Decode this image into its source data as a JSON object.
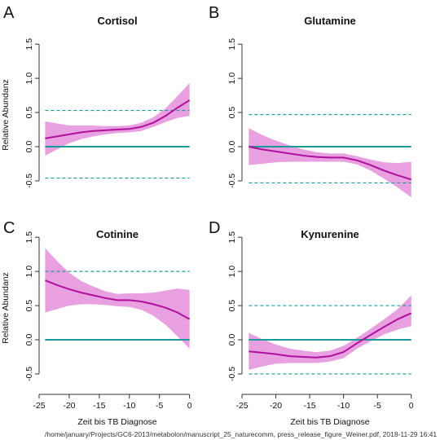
{
  "footer": "/home/january/Projects/GC6-2013/metabolon/manuscript_25_naturecomm, press_release_figure_Weiner.pdf, 2018-11-29 16:41",
  "shared": {
    "ylabel": "Relative Abundanz",
    "xlabel": "Zeit bis TB Diagnose",
    "x_ticks": [
      -25,
      -20,
      -15,
      -10,
      -5,
      0
    ],
    "y_ticks": [
      -0.5,
      0.0,
      0.5,
      1.0,
      1.5
    ],
    "y_tick_labels": [
      "-0.5",
      "0.0",
      "0.5",
      "1.0",
      "1.5"
    ],
    "x_tick_labels": [
      "-25",
      "-20",
      "-15",
      "-10",
      "-5",
      "0"
    ]
  },
  "colors": {
    "line": "#b0109c",
    "band": "#e48fdc",
    "zero_line": "#1a9a9a",
    "threshold_line": "#1a9a9a"
  },
  "chart_data": [
    {
      "type": "line",
      "letter": "A",
      "title": "Cortisol",
      "xlim": [
        -25,
        1
      ],
      "ylim": [
        -0.62,
        1.55
      ],
      "thresholds": [
        0.53,
        -0.46
      ],
      "x": [
        -24,
        -22,
        -20,
        -18,
        -16,
        -14,
        -12,
        -10,
        -8,
        -6,
        -4,
        -2,
        0
      ],
      "mean": [
        0.12,
        0.15,
        0.18,
        0.21,
        0.23,
        0.24,
        0.25,
        0.26,
        0.29,
        0.35,
        0.45,
        0.57,
        0.68
      ],
      "lower": [
        -0.13,
        -0.04,
        0.05,
        0.11,
        0.15,
        0.18,
        0.2,
        0.21,
        0.23,
        0.29,
        0.36,
        0.42,
        0.45
      ],
      "upper": [
        0.37,
        0.34,
        0.31,
        0.31,
        0.31,
        0.3,
        0.3,
        0.31,
        0.35,
        0.43,
        0.56,
        0.74,
        0.93
      ]
    },
    {
      "type": "line",
      "letter": "B",
      "title": "Glutamine",
      "xlim": [
        -25,
        1
      ],
      "ylim": [
        -0.62,
        1.55
      ],
      "thresholds": [
        0.47,
        -0.53
      ],
      "x": [
        -24,
        -22,
        -20,
        -18,
        -16,
        -14,
        -12,
        -10,
        -8,
        -6,
        -4,
        -2,
        0
      ],
      "mean": [
        0.0,
        -0.04,
        -0.07,
        -0.1,
        -0.13,
        -0.15,
        -0.16,
        -0.16,
        -0.2,
        -0.27,
        -0.35,
        -0.42,
        -0.48
      ],
      "lower": [
        -0.27,
        -0.25,
        -0.23,
        -0.22,
        -0.22,
        -0.22,
        -0.22,
        -0.22,
        -0.26,
        -0.35,
        -0.47,
        -0.6,
        -0.74
      ],
      "upper": [
        0.27,
        0.17,
        0.09,
        0.02,
        -0.04,
        -0.08,
        -0.1,
        -0.1,
        -0.14,
        -0.19,
        -0.23,
        -0.24,
        -0.22
      ]
    },
    {
      "type": "line",
      "letter": "C",
      "title": "Cotinine",
      "xlim": [
        -25,
        1
      ],
      "ylim": [
        -0.62,
        1.55
      ],
      "thresholds": [
        1.0,
        0.0
      ],
      "x": [
        -24,
        -22,
        -20,
        -18,
        -16,
        -14,
        -12,
        -10,
        -8,
        -6,
        -4,
        -2,
        0
      ],
      "mean": [
        0.87,
        0.8,
        0.74,
        0.69,
        0.65,
        0.61,
        0.58,
        0.58,
        0.56,
        0.52,
        0.47,
        0.4,
        0.3
      ],
      "lower": [
        0.4,
        0.45,
        0.5,
        0.52,
        0.52,
        0.51,
        0.49,
        0.48,
        0.44,
        0.35,
        0.22,
        0.05,
        -0.13
      ],
      "upper": [
        1.34,
        1.15,
        0.98,
        0.86,
        0.78,
        0.71,
        0.67,
        0.68,
        0.68,
        0.69,
        0.72,
        0.75,
        0.73
      ]
    },
    {
      "type": "line",
      "letter": "D",
      "title": "Kynurenine",
      "xlim": [
        -25,
        1
      ],
      "ylim": [
        -0.62,
        1.55
      ],
      "thresholds": [
        0.5,
        -0.5
      ],
      "x": [
        -24,
        -22,
        -20,
        -18,
        -16,
        -14,
        -12,
        -10,
        -8,
        -6,
        -4,
        -2,
        0
      ],
      "mean": [
        -0.17,
        -0.19,
        -0.21,
        -0.24,
        -0.25,
        -0.26,
        -0.24,
        -0.18,
        -0.05,
        0.07,
        0.19,
        0.3,
        0.39
      ],
      "lower": [
        -0.44,
        -0.39,
        -0.35,
        -0.34,
        -0.34,
        -0.34,
        -0.32,
        -0.27,
        -0.13,
        -0.02,
        0.08,
        0.15,
        0.2
      ],
      "upper": [
        0.1,
        0.01,
        -0.07,
        -0.13,
        -0.16,
        -0.18,
        -0.16,
        -0.09,
        0.03,
        0.16,
        0.3,
        0.45,
        0.65
      ]
    }
  ]
}
